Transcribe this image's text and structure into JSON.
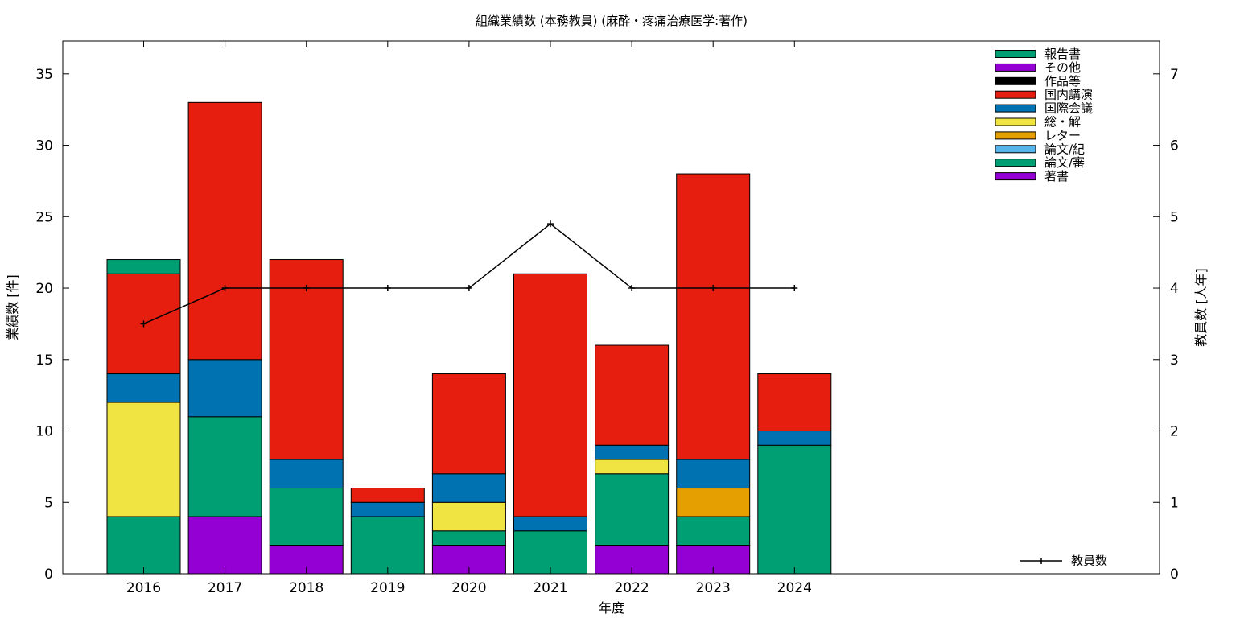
{
  "chart_data": {
    "type": "bar",
    "stacked": true,
    "title": "組織業績数 (本務教員) (麻酔・疼痛治療医学:著作)",
    "xlabel": "年度",
    "ylabel": "業績数 [件]",
    "y2label": "教員数 [人年]",
    "categories": [
      "2016",
      "2017",
      "2018",
      "2019",
      "2020",
      "2021",
      "2022",
      "2023",
      "2024"
    ],
    "ylim": [
      0,
      37.3
    ],
    "y2lim": [
      0,
      7.46
    ],
    "yticks": [
      0,
      5,
      10,
      15,
      20,
      25,
      30,
      35
    ],
    "y2ticks": [
      0,
      1,
      2,
      3,
      4,
      5,
      6,
      7
    ],
    "legend_position": "top-right",
    "grid": false,
    "series": [
      {
        "name": "著書",
        "color": "#9400d3",
        "values": [
          0,
          4,
          2,
          0,
          2,
          0,
          2,
          2,
          0
        ]
      },
      {
        "name": "論文/審",
        "color": "#009e73",
        "values": [
          4,
          7,
          4,
          4,
          1,
          3,
          5,
          2,
          9
        ]
      },
      {
        "name": "論文/紀",
        "color": "#56b4e9",
        "values": [
          0,
          0,
          0,
          0,
          0,
          0,
          0,
          0,
          0
        ]
      },
      {
        "name": "レター",
        "color": "#e69f00",
        "values": [
          0,
          0,
          0,
          0,
          0,
          0,
          0,
          2,
          0
        ]
      },
      {
        "name": "総・解",
        "color": "#f0e442",
        "values": [
          8,
          0,
          0,
          0,
          2,
          0,
          1,
          0,
          0
        ]
      },
      {
        "name": "国際会議",
        "color": "#0072b2",
        "values": [
          2,
          4,
          2,
          1,
          2,
          1,
          1,
          2,
          1
        ]
      },
      {
        "name": "国内講演",
        "color": "#e51e10",
        "values": [
          7,
          18,
          14,
          1,
          7,
          17,
          7,
          20,
          4
        ]
      },
      {
        "name": "作品等",
        "color": "#000000",
        "values": [
          0,
          0,
          0,
          0,
          0,
          0,
          0,
          0,
          0
        ]
      },
      {
        "name": "その他",
        "color": "#9400d3",
        "values": [
          0,
          0,
          0,
          0,
          0,
          0,
          0,
          0,
          0
        ]
      },
      {
        "name": "報告書",
        "color": "#009e73",
        "values": [
          1,
          0,
          0,
          0,
          0,
          0,
          0,
          0,
          0
        ]
      }
    ],
    "line_series": {
      "name": "教員数",
      "axis": "y2",
      "color": "#000000",
      "values": [
        3.5,
        4,
        4,
        4,
        4,
        4.9,
        4,
        4,
        4
      ]
    }
  }
}
